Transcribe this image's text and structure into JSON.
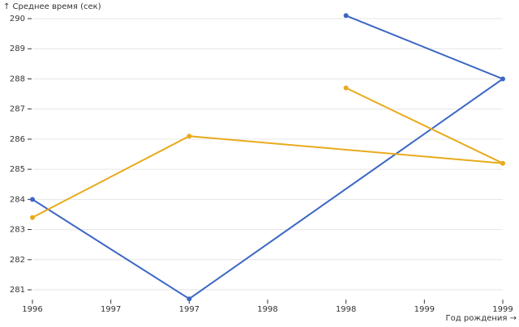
{
  "chart_data": {
    "type": "line",
    "y_label": "↑ Среднее время (сек)",
    "x_label": "Год рождения →",
    "x": [
      1996,
      1997,
      1999,
      1998
    ],
    "series": [
      {
        "color": "#3b66c4",
        "values": [
          284,
          280.7,
          288,
          290.1
        ]
      },
      {
        "color": "#e8ab1c",
        "values": [
          283.4,
          286.1,
          285.2,
          287.7
        ]
      }
    ],
    "xlim": [
      1996,
      1999
    ],
    "xticks": [
      1996,
      {
        "value": 1996.5,
        "label": "1997"
      },
      1997,
      {
        "value": 1997.5,
        "label": "1998"
      },
      1998,
      {
        "value": 1998.5,
        "label": "1999"
      },
      1999
    ],
    "ylim": [
      280.7,
      290.1
    ],
    "yticks": [
      281,
      282,
      283,
      284,
      285,
      286,
      287,
      288,
      289,
      290
    ],
    "grid": true
  }
}
